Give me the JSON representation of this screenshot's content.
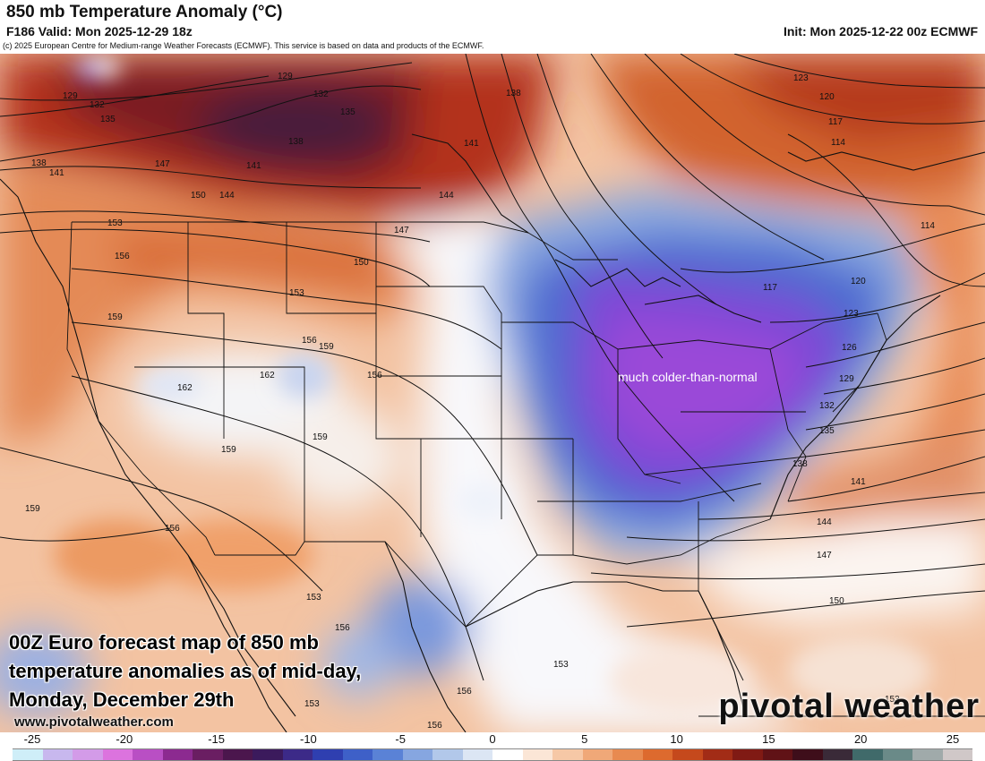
{
  "header": {
    "title": "850 mb Temperature Anomaly (°C)",
    "valid": "F186 Valid: Mon 2025-12-29 18z",
    "init": "Init: Mon 2025-12-22 00z ECMWF",
    "copyright": "(c) 2025 European Centre for Medium-range Weather Forecasts (ECMWF). This service is based on data and products of the ECMWF."
  },
  "map": {
    "annotation": "much colder-than-normal",
    "contour_labels": [
      "114",
      "117",
      "120",
      "123",
      "126",
      "129",
      "132",
      "135",
      "138",
      "141",
      "144",
      "147",
      "150",
      "153",
      "156",
      "159",
      "162"
    ]
  },
  "caption": "00Z Euro forecast map of 850 mb temperature anomalies as of mid-day, Monday, December 29th",
  "website": "www.pivotalweather.com",
  "brand": "pivotal weather",
  "colorbar": {
    "ticks": [
      "-25",
      "-20",
      "-15",
      "-10",
      "-5",
      "0",
      "5",
      "10",
      "15",
      "20",
      "25"
    ],
    "colors": [
      "#cfeef8",
      "#c8b8ee",
      "#d39be8",
      "#dc73de",
      "#b94fc4",
      "#8c2a90",
      "#6a1e62",
      "#4b164d",
      "#3b1a5c",
      "#3c2a88",
      "#2f3fb0",
      "#3e60c8",
      "#5a82d6",
      "#86a6e0",
      "#b2c8ea",
      "#dce6f4",
      "#ffffff",
      "#fbe6d6",
      "#f6c8a6",
      "#f0a878",
      "#e88a50",
      "#dd6a2e",
      "#c5491c",
      "#a22c16",
      "#801a14",
      "#601216",
      "#3e0e1a",
      "#3a2a38",
      "#406a6a",
      "#6a8a88",
      "#a0aaaa",
      "#d0c8c8"
    ]
  }
}
